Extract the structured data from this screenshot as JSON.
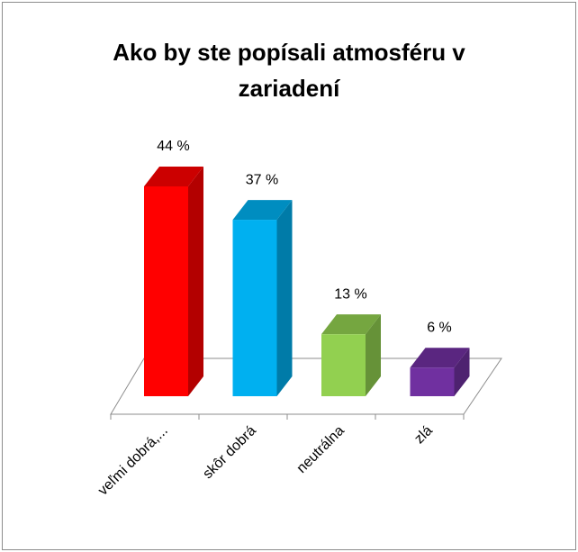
{
  "chart_data": {
    "type": "bar3d",
    "title": "Ako by ste popísali atmosféru v zariadení",
    "categories": [
      "veľmi dobrá,...",
      "skôr dobrá",
      "neutrálna",
      "zlá"
    ],
    "values": [
      44,
      37,
      13,
      6
    ],
    "value_labels": [
      "44 %",
      "37 %",
      "13 %",
      "6 %"
    ],
    "colors": [
      "#ff0000",
      "#00b0f0",
      "#92d050",
      "#7030a0"
    ]
  }
}
